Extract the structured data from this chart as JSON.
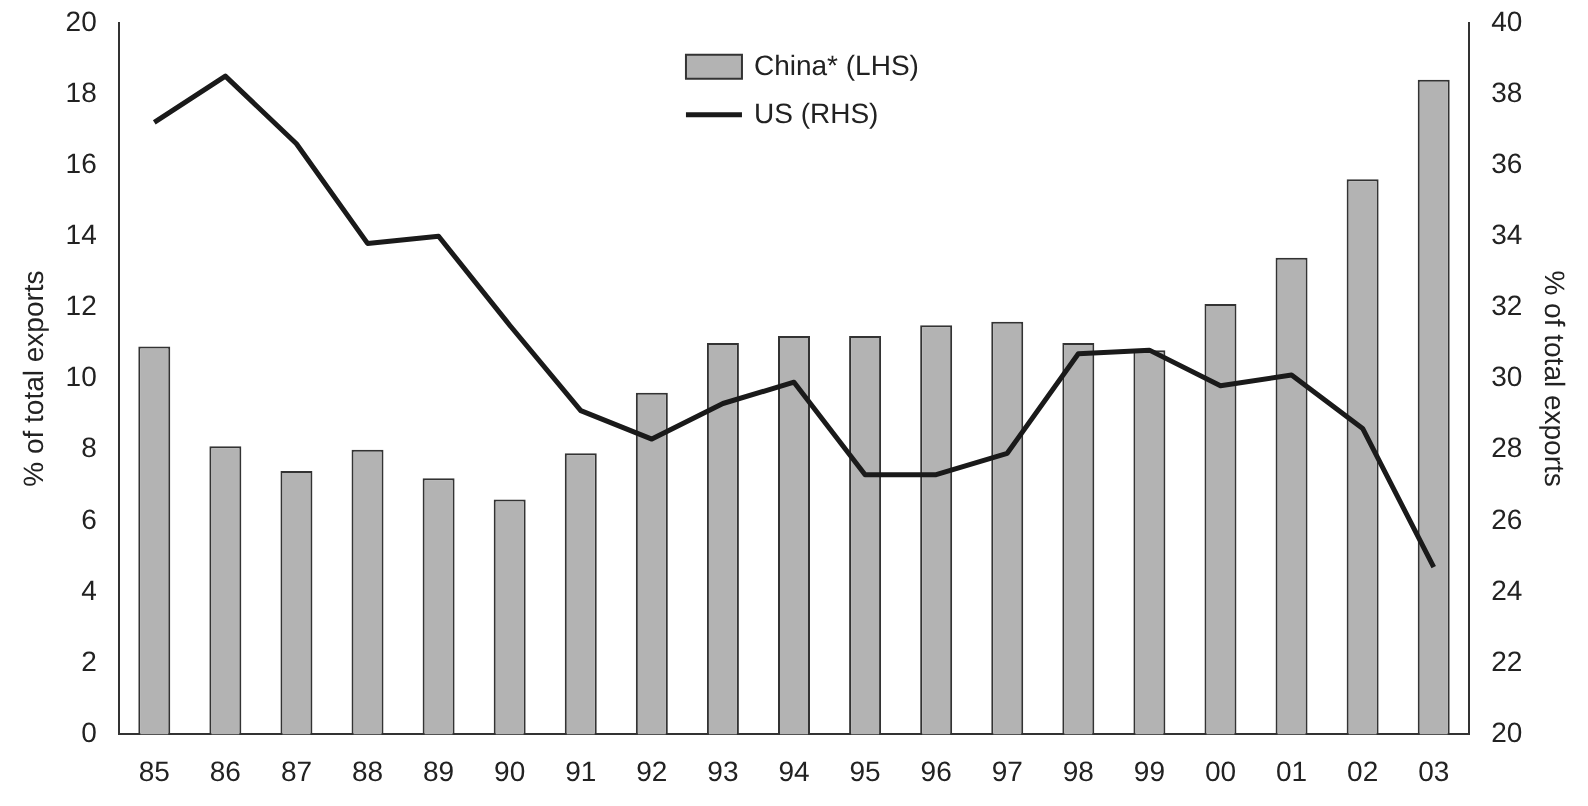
{
  "chart_data": {
    "type": "bar",
    "categories": [
      "85",
      "86",
      "87",
      "88",
      "89",
      "90",
      "91",
      "92",
      "93",
      "94",
      "95",
      "96",
      "97",
      "98",
      "99",
      "00",
      "01",
      "02",
      "03"
    ],
    "series": [
      {
        "name": "China* (LHS)",
        "color": "#b3b3b3",
        "values": [
          10.9,
          8.1,
          7.4,
          8.0,
          7.2,
          6.6,
          7.9,
          9.6,
          11.0,
          11.2,
          11.2,
          11.5,
          11.6,
          11.0,
          10.8,
          12.1,
          13.4,
          15.6,
          18.4
        ]
      },
      {
        "name": "US (RHS)",
        "type": "line",
        "axis": "y2",
        "color": "#1a1a1a",
        "values": [
          37.2,
          38.5,
          36.6,
          33.8,
          34.0,
          31.5,
          29.1,
          28.3,
          29.3,
          29.9,
          27.3,
          27.3,
          27.9,
          30.7,
          30.8,
          29.8,
          30.1,
          28.6,
          24.7
        ]
      }
    ],
    "ylabel": "% of total exports",
    "y2label": "% of total exports",
    "ylim": [
      0,
      20
    ],
    "yticks": [
      0,
      2,
      4,
      6,
      8,
      10,
      12,
      14,
      16,
      18,
      20
    ],
    "y2lim": [
      20,
      40
    ],
    "y2ticks": [
      20,
      22,
      24,
      26,
      28,
      30,
      32,
      34,
      36,
      38,
      40
    ],
    "grid": false,
    "legend": "top",
    "marker": "none",
    "line_style": "solid"
  }
}
